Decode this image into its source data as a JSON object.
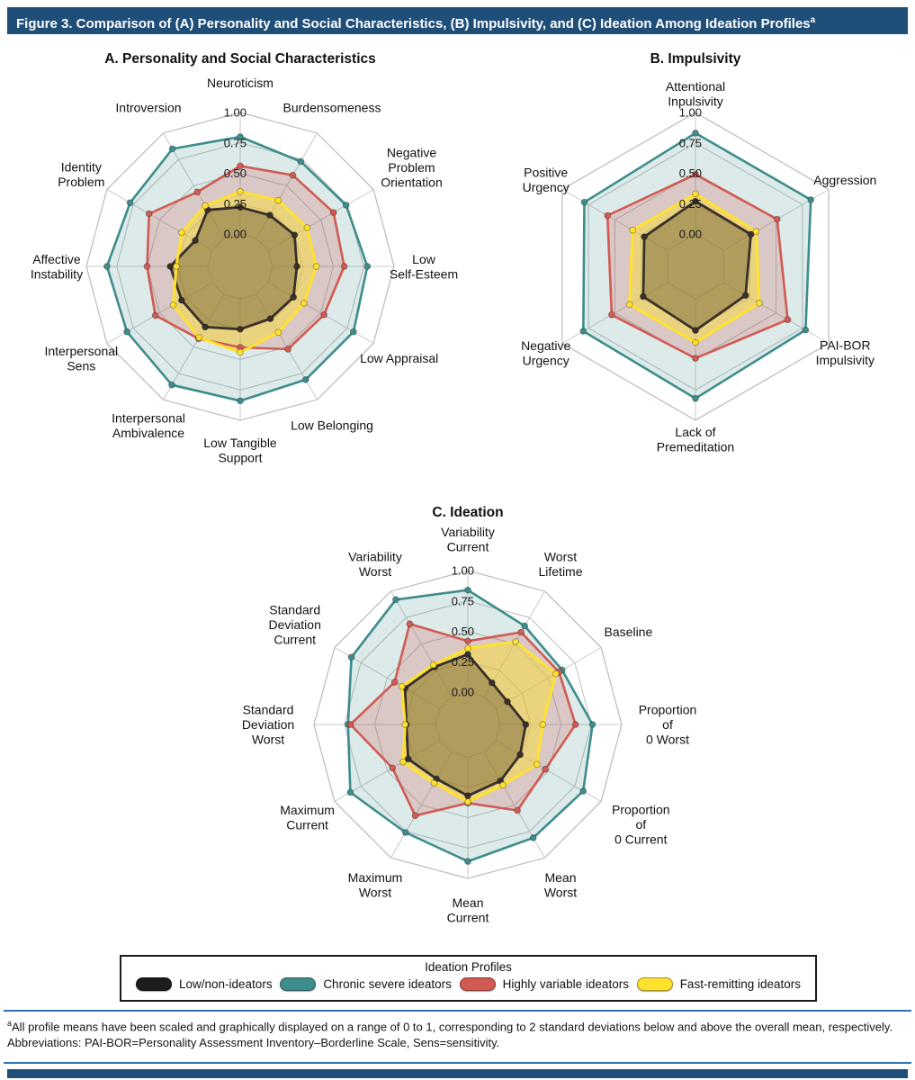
{
  "figure": {
    "title": "Figure 3. Comparison of (A) Personality and Social Characteristics, (B) Impulsivity, and (C) Ideation Among Ideation Profiles",
    "title_superscript": "a"
  },
  "colors": {
    "header_bg": "#1f4e79",
    "rule_blue": "#2e74b5",
    "grid": "#bfbfbf",
    "series_black": "#38302a",
    "series_teal": "#3e8d8c",
    "series_red": "#d15b52",
    "series_yellow": "#ffe12e"
  },
  "legend": {
    "title": "Ideation Profiles",
    "items": [
      {
        "label": "Low/non-ideators",
        "color": "#1c1c1c"
      },
      {
        "label": "Chronic severe ideators",
        "color": "#3e8d8c"
      },
      {
        "label": "Highly variable ideators",
        "color": "#d15b52"
      },
      {
        "label": "Fast-remitting ideators",
        "color": "#ffe12e"
      }
    ]
  },
  "footnotes": {
    "note1_superscript": "a",
    "note1": "All profile means have been scaled and graphically displayed on a range of 0 to 1, corresponding to 2 standard deviations below and above the overall mean, respectively.",
    "abbreviations": "Abbreviations: PAI-BOR=Personality Assessment Inventory–Borderline Scale, Sens=sensitivity."
  },
  "chart_data": [
    {
      "type": "radar",
      "id": "personality-social",
      "title": "A. Personality and Social Characteristics",
      "range": [
        0,
        1
      ],
      "ticks": [
        1.0,
        0.75,
        0.5,
        0.25,
        0.0
      ],
      "tick_labels": [
        "1.00",
        "0.75",
        "0.50",
        "0.25",
        "0.00"
      ],
      "grid": true,
      "categories": [
        "Neuroticism",
        "Burdensomeness",
        "Negative Problem Orientation",
        "Low Self-Esteem",
        "Low Appraisal",
        "Low Belonging",
        "Low Tangible Support",
        "Interpersonal Ambivalence",
        "Interpersonal Sens",
        "Affective Instability",
        "Identity Problem",
        "Introversion"
      ],
      "label_lines": [
        [
          "Neuroticism"
        ],
        [
          "Burdensomeness"
        ],
        [
          "Negative",
          "Problem",
          "Orientation"
        ],
        [
          "Low",
          "Self-Esteem"
        ],
        [
          "Low Appraisal"
        ],
        [
          "Low Belonging"
        ],
        [
          "Low Tangible",
          "Support"
        ],
        [
          "Interpersonal",
          "Ambivalence"
        ],
        [
          "Interpersonal",
          "Sens"
        ],
        [
          "Affective",
          "Instability"
        ],
        [
          "Identity",
          "Problem"
        ],
        [
          "Introversion"
        ]
      ],
      "series": [
        {
          "name": "Low/non-ideators",
          "color": "#38302a",
          "fill": "rgba(70,55,30,0.35)",
          "width": 2.8,
          "values": [
            0.22,
            0.22,
            0.25,
            0.2,
            0.24,
            0.23,
            0.25,
            0.31,
            0.29,
            0.31,
            0.16,
            0.27
          ]
        },
        {
          "name": "Chronic severe ideators",
          "color": "#3e8d8c",
          "fill": "rgba(62,141,140,0.18)",
          "width": 2.6,
          "values": [
            0.8,
            0.73,
            0.74,
            0.78,
            0.81,
            0.81,
            0.84,
            0.86,
            0.81,
            0.83,
            0.78,
            0.85
          ]
        },
        {
          "name": "Highly variable ideators",
          "color": "#d15b52",
          "fill": "rgba(209,91,82,0.24)",
          "width": 2.6,
          "values": [
            0.56,
            0.6,
            0.62,
            0.59,
            0.53,
            0.52,
            0.4,
            0.42,
            0.54,
            0.5,
            0.6,
            0.44
          ]
        },
        {
          "name": "Fast-remitting ideators",
          "color": "#ffe12e",
          "fill": "rgba(255,224,40,0.45)",
          "width": 3,
          "values": [
            0.35,
            0.36,
            0.37,
            0.36,
            0.34,
            0.36,
            0.44,
            0.41,
            0.37,
            0.26,
            0.29,
            0.31
          ]
        }
      ]
    },
    {
      "type": "radar",
      "id": "impulsivity",
      "title": "B. Impulsivity",
      "range": [
        0,
        1
      ],
      "ticks": [
        1.0,
        0.75,
        0.5,
        0.25,
        0.0
      ],
      "tick_labels": [
        "1.00",
        "0.75",
        "0.50",
        "0.25",
        "0.00"
      ],
      "grid": true,
      "categories": [
        "Attentional Inpulsivity",
        "Aggression",
        "PAI-BOR Impulsivity",
        "Lack of Premeditation",
        "Negative Urgency",
        "Positive Urgency"
      ],
      "label_lines": [
        [
          "Attentional",
          "Inpulsivity"
        ],
        [
          "Aggression"
        ],
        [
          "PAI-BOR",
          "Impulsivity"
        ],
        [
          "Lack of",
          "Premeditation"
        ],
        [
          "Negative",
          "Urgency"
        ],
        [
          "Positive",
          "Urgency"
        ]
      ],
      "series": [
        {
          "name": "Low/non-ideators",
          "color": "#38302a",
          "fill": "rgba(70,55,30,0.35)",
          "width": 2.8,
          "values": [
            0.27,
            0.26,
            0.21,
            0.26,
            0.23,
            0.22
          ]
        },
        {
          "name": "Chronic severe ideators",
          "color": "#3e8d8c",
          "fill": "rgba(62,141,140,0.18)",
          "width": 2.6,
          "values": [
            0.83,
            0.83,
            0.78,
            0.82,
            0.8,
            0.79
          ]
        },
        {
          "name": "Highly variable ideators",
          "color": "#d15b52",
          "fill": "rgba(209,91,82,0.24)",
          "width": 2.6,
          "values": [
            0.49,
            0.51,
            0.61,
            0.49,
            0.53,
            0.57
          ]
        },
        {
          "name": "Fast-remitting ideators",
          "color": "#ffe12e",
          "fill": "rgba(255,224,40,0.45)",
          "width": 3,
          "values": [
            0.33,
            0.31,
            0.34,
            0.36,
            0.36,
            0.33
          ]
        }
      ]
    },
    {
      "type": "radar",
      "id": "ideation",
      "title": "C. Ideation",
      "range": [
        0,
        1
      ],
      "ticks": [
        1.0,
        0.75,
        0.5,
        0.25,
        0.0
      ],
      "tick_labels": [
        "1.00",
        "0.75",
        "0.50",
        "0.25",
        "0.00"
      ],
      "grid": true,
      "categories": [
        "Variability Current",
        "Worst Lifetime",
        "Baseline",
        "Proportion of 0 Worst",
        "Proportion of 0 Current",
        "Mean Worst",
        "Mean Current",
        "Maximum Worst",
        "Maximum Current",
        "Standard Deviation Worst",
        "Standard Deviation Current",
        "Variability Worst"
      ],
      "label_lines": [
        [
          "Variability",
          "Current"
        ],
        [
          "Worst",
          "Lifetime"
        ],
        [
          "Baseline"
        ],
        [
          "Proportion",
          "of",
          "0 Worst"
        ],
        [
          "Proportion",
          "of",
          "0 Current"
        ],
        [
          "Mean",
          "Worst"
        ],
        [
          "Mean",
          "Current"
        ],
        [
          "Maximum",
          "Worst"
        ],
        [
          "Maximum",
          "Current"
        ],
        [
          "Standard",
          "Deviation",
          "Worst"
        ],
        [
          "Standard",
          "Deviation",
          "Current"
        ],
        [
          "Variability",
          "Worst"
        ]
      ],
      "series": [
        {
          "name": "Low/non-ideators",
          "color": "#38302a",
          "fill": "rgba(70,55,30,0.35)",
          "width": 2.8,
          "values": [
            0.31,
            0.13,
            0.11,
            0.21,
            0.23,
            0.27,
            0.32,
            0.25,
            0.3,
            0.24,
            0.33,
            0.28
          ]
        },
        {
          "name": "Chronic severe ideators",
          "color": "#3e8d8c",
          "fill": "rgba(62,141,140,0.18)",
          "width": 2.6,
          "values": [
            0.84,
            0.67,
            0.63,
            0.76,
            0.83,
            0.81,
            0.86,
            0.76,
            0.85,
            0.72,
            0.84,
            0.92
          ]
        },
        {
          "name": "Highly variable ideators",
          "color": "#d15b52",
          "fill": "rgba(209,91,82,0.24)",
          "width": 2.6,
          "values": [
            0.42,
            0.61,
            0.6,
            0.62,
            0.47,
            0.55,
            0.38,
            0.6,
            0.45,
            0.7,
            0.43,
            0.69
          ]
        },
        {
          "name": "Fast-remitting ideators",
          "color": "#ffe12e",
          "fill": "rgba(255,224,40,0.45)",
          "width": 3,
          "values": [
            0.36,
            0.52,
            0.57,
            0.35,
            0.39,
            0.31,
            0.37,
            0.29,
            0.35,
            0.25,
            0.36,
            0.3
          ]
        }
      ]
    }
  ]
}
